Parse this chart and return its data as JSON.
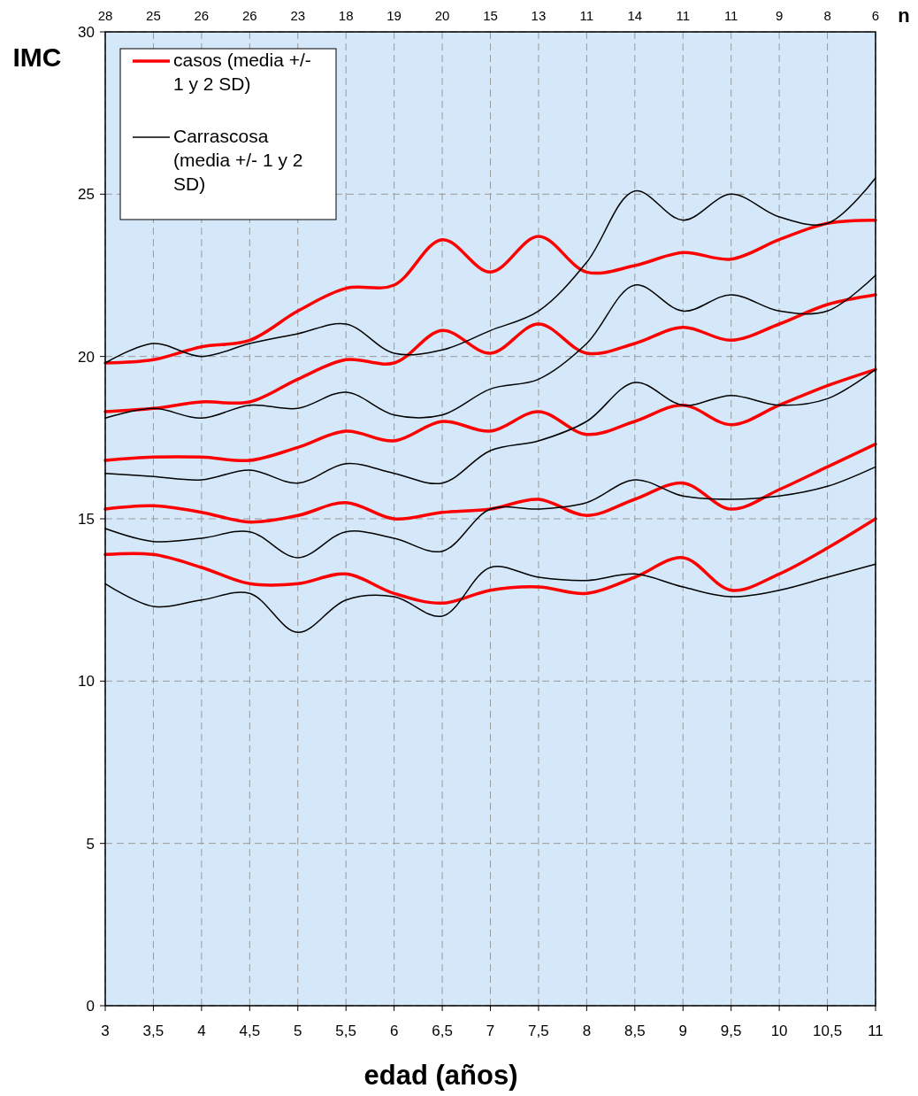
{
  "chart_data": {
    "type": "line",
    "xlabel": "edad (años)",
    "ylabel": "IMC",
    "x": [
      3,
      3.5,
      4,
      4.5,
      5,
      5.5,
      6,
      6.5,
      7,
      7.5,
      8,
      8.5,
      9,
      9.5,
      10,
      10.5,
      11
    ],
    "series": [
      {
        "name": "casos (media +/- 1 y 2 SD)",
        "color": "#ff0000",
        "values": [
          19.8,
          19.9,
          20.3,
          20.5,
          21.4,
          22.1,
          22.2,
          23.6,
          22.6,
          23.7,
          22.6,
          22.8,
          23.2,
          23.0,
          23.6,
          24.1,
          24.2
        ]
      },
      {
        "color": "#ff0000",
        "values": [
          18.3,
          18.4,
          18.6,
          18.6,
          19.3,
          19.9,
          19.8,
          20.8,
          20.1,
          21.0,
          20.1,
          20.4,
          20.9,
          20.5,
          21.0,
          21.6,
          21.9
        ]
      },
      {
        "color": "#ff0000",
        "values": [
          16.8,
          16.9,
          16.9,
          16.8,
          17.2,
          17.7,
          17.4,
          18.0,
          17.7,
          18.3,
          17.6,
          18.0,
          18.5,
          17.9,
          18.5,
          19.1,
          19.6
        ]
      },
      {
        "color": "#ff0000",
        "values": [
          15.3,
          15.4,
          15.2,
          14.9,
          15.1,
          15.5,
          15.0,
          15.2,
          15.3,
          15.6,
          15.1,
          15.6,
          16.1,
          15.3,
          15.9,
          16.6,
          17.3
        ]
      },
      {
        "color": "#ff0000",
        "values": [
          13.9,
          13.9,
          13.5,
          13.0,
          13.0,
          13.3,
          12.7,
          12.4,
          12.8,
          12.9,
          12.7,
          13.2,
          13.8,
          12.8,
          13.3,
          14.1,
          15.0
        ]
      },
      {
        "name": "Carrascosa (media +/- 1 y 2 SD)",
        "color": "#000000",
        "values": [
          19.8,
          20.4,
          20.0,
          20.4,
          20.7,
          21.0,
          20.1,
          20.2,
          20.8,
          21.4,
          22.9,
          25.1,
          24.2,
          25.0,
          24.3,
          24.1,
          25.5
        ]
      },
      {
        "color": "#000000",
        "values": [
          18.1,
          18.4,
          18.1,
          18.5,
          18.4,
          18.9,
          18.2,
          18.2,
          19.0,
          19.3,
          20.4,
          22.2,
          21.4,
          21.9,
          21.4,
          21.4,
          22.5
        ]
      },
      {
        "color": "#000000",
        "values": [
          16.4,
          16.3,
          16.2,
          16.5,
          16.1,
          16.7,
          16.4,
          16.1,
          17.1,
          17.4,
          18.0,
          19.2,
          18.5,
          18.8,
          18.5,
          18.7,
          19.6
        ]
      },
      {
        "color": "#000000",
        "values": [
          14.7,
          14.3,
          14.4,
          14.6,
          13.8,
          14.6,
          14.4,
          14.0,
          15.3,
          15.3,
          15.5,
          16.2,
          15.7,
          15.6,
          15.7,
          16.0,
          16.6
        ]
      },
      {
        "color": "#000000",
        "values": [
          13.0,
          12.3,
          12.5,
          12.7,
          11.5,
          12.5,
          12.6,
          12.0,
          13.5,
          13.2,
          13.1,
          13.3,
          12.9,
          12.6,
          12.8,
          13.2,
          13.6
        ]
      }
    ],
    "xlim": [
      3,
      11
    ],
    "xticks": [
      3,
      {
        "value": 3.5,
        "label": "3,5"
      },
      4,
      {
        "value": 4.5,
        "label": "4,5"
      },
      5,
      {
        "value": 5.5,
        "label": "5,5"
      },
      6,
      {
        "value": 6.5,
        "label": "6,5"
      },
      7,
      {
        "value": 7.5,
        "label": "7,5"
      },
      8,
      {
        "value": 8.5,
        "label": "8,5"
      },
      9,
      {
        "value": 9.5,
        "label": "9,5"
      },
      10,
      {
        "value": 10.5,
        "label": "10,5"
      },
      11
    ],
    "annotations": [
      "28",
      "25",
      "26",
      "26",
      "23",
      "18",
      "19",
      "20",
      "15",
      "13",
      "11",
      "14",
      "11",
      "11",
      "9",
      "8",
      "6",
      "n"
    ],
    "ylim": [
      0,
      30
    ],
    "yticks": [
      0,
      5,
      10,
      15,
      20,
      25,
      30
    ],
    "grid": true,
    "legend": "top left",
    "marker": "none",
    "line_style": "solid"
  }
}
